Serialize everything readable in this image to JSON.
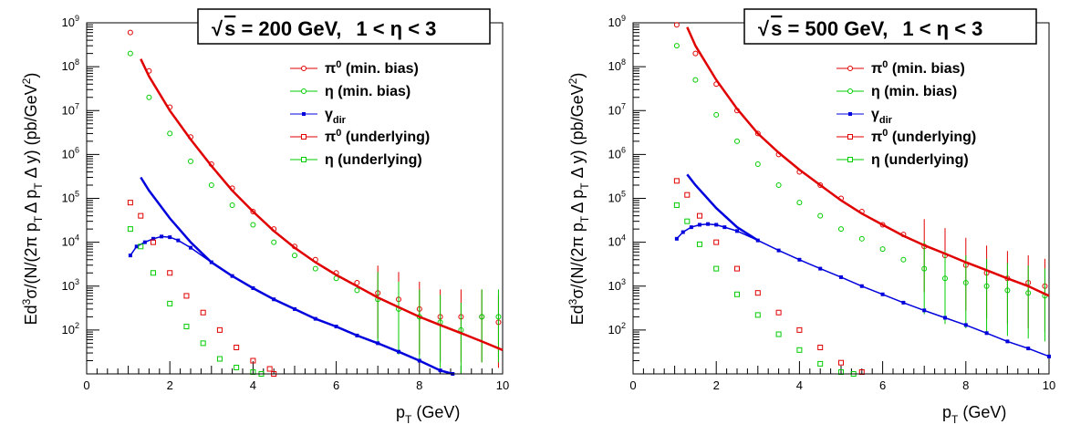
{
  "chart_data": [
    {
      "type": "scatter",
      "title_box": {
        "sqrt_symbol": "√",
        "s_label": "s",
        "energy_text": " = 200 GeV,",
        "eta_range_text": "1 < η < 3"
      },
      "xlabel": "p",
      "xlabel_sub": "T",
      "xlabel_unit": " (GeV)",
      "ylabel_parts": {
        "p1": "Ed",
        "sup3": "3",
        "p2": "σ/(N/(2π p",
        "subT1": "T",
        "p3": "Δ p",
        "subT2": "T",
        "p4": " Δ y) (pb/GeV",
        "sup2": "2",
        "p5": ")"
      },
      "xlim": [
        0,
        10
      ],
      "ylim": [
        10,
        1000000000
      ],
      "yscale": "log",
      "x_ticks": [
        0,
        2,
        4,
        6,
        8,
        10
      ],
      "y_tick_labels": [
        {
          "base": "10",
          "exp": "2",
          "value": 100
        },
        {
          "base": "10",
          "exp": "3",
          "value": 1000
        },
        {
          "base": "10",
          "exp": "4",
          "value": 10000
        },
        {
          "base": "10",
          "exp": "5",
          "value": 100000
        },
        {
          "base": "10",
          "exp": "6",
          "value": 1000000
        },
        {
          "base": "10",
          "exp": "7",
          "value": 10000000
        },
        {
          "base": "10",
          "exp": "8",
          "value": 100000000
        },
        {
          "base": "10",
          "exp": "9",
          "value": 1000000000
        }
      ],
      "legend_position": "top-right",
      "legend": [
        {
          "label": "π",
          "sup": "0",
          "sub": "",
          "suffix": " (min. bias)",
          "color": "#e00000",
          "marker": "circle"
        },
        {
          "label": "η",
          "sup": "",
          "sub": "",
          "suffix": " (min. bias)",
          "color": "#00cc00",
          "marker": "circle"
        },
        {
          "label": "γ",
          "sup": "",
          "sub": "dir",
          "suffix": "",
          "color": "#0000dd",
          "marker": "square-filled"
        },
        {
          "label": "π",
          "sup": "0",
          "sub": "",
          "suffix": " (underlying)",
          "color": "#e00000",
          "marker": "square"
        },
        {
          "label": "η",
          "sup": "",
          "sub": "",
          "suffix": " (underlying)",
          "color": "#00cc00",
          "marker": "square"
        }
      ],
      "series": [
        {
          "name": "π0 (min. bias)",
          "color": "#e00000",
          "marker": "circle",
          "x": [
            1.05,
            1.5,
            2.0,
            2.5,
            3.0,
            3.5,
            4.0,
            4.5,
            5.0,
            5.5,
            6.0,
            6.5,
            7.0,
            7.5,
            8.0,
            8.5,
            9.0,
            9.5,
            9.9
          ],
          "y": [
            600000000,
            80000000,
            12000000,
            2500000,
            600000,
            170000,
            50000,
            20000,
            8000,
            4000,
            2000,
            1200,
            700,
            500,
            300,
            200,
            200,
            200,
            150
          ]
        },
        {
          "name": "η (min. bias)",
          "color": "#00cc00",
          "marker": "circle",
          "x": [
            1.05,
            1.5,
            2.0,
            2.5,
            3.0,
            3.5,
            4.0,
            4.5,
            5.0,
            5.5,
            6.0,
            6.5,
            7.0,
            7.5,
            8.0,
            8.5,
            9.0,
            9.5,
            9.9
          ],
          "y": [
            200000000,
            20000000,
            3000000,
            700000,
            200000,
            70000,
            25000,
            10000,
            5000,
            2500,
            1500,
            800,
            500,
            300,
            200,
            150,
            100,
            200,
            200
          ]
        },
        {
          "name": "π0 (min. bias) fit",
          "color": "#e00000",
          "marker": "line",
          "x": [
            1.3,
            1.5,
            2.0,
            2.5,
            3.0,
            3.5,
            4.0,
            4.5,
            5.0,
            5.5,
            6.0,
            6.5,
            7.0,
            7.5,
            8.0,
            8.5,
            9.0,
            9.5,
            10.0
          ],
          "y": [
            150000000,
            60000000,
            10000000,
            2200000,
            550000,
            150000,
            50000,
            18000,
            7500,
            3500,
            1800,
            1000,
            550,
            330,
            200,
            130,
            85,
            55,
            35
          ]
        },
        {
          "name": "γdir",
          "color": "#0000dd",
          "marker": "line-points",
          "x": [
            1.05,
            1.2,
            1.4,
            1.6,
            1.8,
            2.0,
            2.2,
            2.5,
            3.0,
            3.5,
            4.0,
            4.5,
            5.0,
            5.5,
            6.0,
            6.5,
            7.0,
            7.5,
            8.0,
            8.5,
            8.8
          ],
          "y": [
            5000,
            8000,
            10000,
            12000,
            13500,
            13000,
            11000,
            7500,
            3500,
            1700,
            900,
            500,
            300,
            180,
            120,
            75,
            50,
            32,
            20,
            12,
            10
          ]
        },
        {
          "name": "γdir (fit)",
          "color": "#0000dd",
          "marker": "line",
          "x": [
            1.3,
            1.5,
            2.0,
            2.5,
            3.0,
            3.5,
            4.0,
            4.5,
            5.0,
            5.5,
            6.0,
            6.5,
            7.0,
            7.5,
            8.0,
            8.5,
            8.8
          ],
          "y": [
            300000,
            150000,
            35000,
            10000,
            3500,
            1700,
            900,
            500,
            300,
            180,
            120,
            75,
            50,
            32,
            20,
            12,
            10
          ]
        },
        {
          "name": "π0 (underlying)",
          "color": "#e00000",
          "marker": "square",
          "x": [
            1.05,
            1.3,
            1.6,
            2.0,
            2.4,
            2.8,
            3.2,
            3.6,
            4.0,
            4.4,
            4.5
          ],
          "y": [
            80000,
            40000,
            10000,
            2000,
            600,
            250,
            100,
            40,
            20,
            13,
            10
          ]
        },
        {
          "name": "η (underlying)",
          "color": "#00cc00",
          "marker": "square",
          "x": [
            1.05,
            1.3,
            1.6,
            2.0,
            2.4,
            2.8,
            3.2,
            3.6,
            4.0,
            4.2
          ],
          "y": [
            20000,
            8000,
            2000,
            400,
            120,
            50,
            22,
            14,
            11,
            10
          ]
        }
      ]
    },
    {
      "type": "scatter",
      "title_box": {
        "sqrt_symbol": "√",
        "s_label": "s",
        "energy_text": " = 500 GeV,",
        "eta_range_text": "1 < η < 3"
      },
      "xlabel": "p",
      "xlabel_sub": "T",
      "xlabel_unit": " (GeV)",
      "ylabel_parts": {
        "p1": "Ed",
        "sup3": "3",
        "p2": "σ/(N/(2π p",
        "subT1": "T",
        "p3": "Δ p",
        "subT2": "T",
        "p4": " Δ y) (pb/GeV",
        "sup2": "2",
        "p5": ")"
      },
      "xlim": [
        0,
        10
      ],
      "ylim": [
        10,
        1000000000
      ],
      "yscale": "log",
      "x_ticks": [
        0,
        2,
        4,
        6,
        8,
        10
      ],
      "y_tick_labels": [
        {
          "base": "10",
          "exp": "2",
          "value": 100
        },
        {
          "base": "10",
          "exp": "3",
          "value": 1000
        },
        {
          "base": "10",
          "exp": "4",
          "value": 10000
        },
        {
          "base": "10",
          "exp": "5",
          "value": 100000
        },
        {
          "base": "10",
          "exp": "6",
          "value": 1000000
        },
        {
          "base": "10",
          "exp": "7",
          "value": 10000000
        },
        {
          "base": "10",
          "exp": "8",
          "value": 100000000
        },
        {
          "base": "10",
          "exp": "9",
          "value": 1000000000
        }
      ],
      "legend_position": "top-right",
      "legend": [
        {
          "label": "π",
          "sup": "0",
          "sub": "",
          "suffix": " (min. bias)",
          "color": "#e00000",
          "marker": "circle"
        },
        {
          "label": "η",
          "sup": "",
          "sub": "",
          "suffix": " (min. bias)",
          "color": "#00cc00",
          "marker": "circle"
        },
        {
          "label": "γ",
          "sup": "",
          "sub": "dir",
          "suffix": "",
          "color": "#0000dd",
          "marker": "square-filled"
        },
        {
          "label": "π",
          "sup": "0",
          "sub": "",
          "suffix": " (underlying)",
          "color": "#e00000",
          "marker": "square"
        },
        {
          "label": "η",
          "sup": "",
          "sub": "",
          "suffix": " (underlying)",
          "color": "#00cc00",
          "marker": "square"
        }
      ],
      "series": [
        {
          "name": "π0 (min. bias)",
          "color": "#e00000",
          "marker": "circle",
          "x": [
            1.05,
            1.5,
            2.0,
            2.5,
            3.0,
            3.5,
            4.0,
            4.5,
            5.0,
            5.5,
            6.0,
            6.5,
            7.0,
            7.5,
            8.0,
            8.5,
            9.0,
            9.5,
            9.9
          ],
          "y": [
            900000000,
            200000000,
            40000000,
            10000000,
            3000000,
            1000000,
            400000,
            200000,
            100000,
            50000,
            25000,
            15000,
            8000,
            5000,
            3000,
            2000,
            1500,
            1200,
            1000
          ]
        },
        {
          "name": "η (min. bias)",
          "color": "#00cc00",
          "marker": "circle",
          "x": [
            1.05,
            1.5,
            2.0,
            2.5,
            3.0,
            3.5,
            4.0,
            4.5,
            5.0,
            5.5,
            6.0,
            6.5,
            7.0,
            7.5,
            8.0,
            8.5,
            9.0,
            9.5,
            9.9
          ],
          "y": [
            300000000,
            50000000,
            8000000,
            2000000,
            600000,
            200000,
            80000,
            40000,
            20000,
            12000,
            7000,
            4000,
            2500,
            1500,
            1200,
            1000,
            800,
            700,
            600
          ]
        },
        {
          "name": "π0 (min. bias) fit",
          "color": "#e00000",
          "marker": "line",
          "x": [
            1.3,
            1.5,
            2.0,
            2.5,
            3.0,
            3.5,
            4.0,
            4.5,
            5.0,
            5.5,
            6.0,
            6.5,
            7.0,
            7.5,
            8.0,
            8.5,
            9.0,
            9.5,
            10.0
          ],
          "y": [
            800000000,
            300000000,
            50000000,
            11000000,
            3000000,
            1100000,
            450000,
            200000,
            90000,
            45000,
            25000,
            14000,
            8500,
            5500,
            3500,
            2300,
            1500,
            1000,
            600
          ]
        },
        {
          "name": "γdir",
          "color": "#0000dd",
          "marker": "line-points",
          "x": [
            1.05,
            1.2,
            1.4,
            1.6,
            1.8,
            2.0,
            2.2,
            2.5,
            3.0,
            3.5,
            4.0,
            4.5,
            5.0,
            5.5,
            6.0,
            6.5,
            7.0,
            7.5,
            8.0,
            8.5,
            9.0,
            9.5,
            10.0
          ],
          "y": [
            12000,
            17000,
            22000,
            25000,
            26000,
            25000,
            22000,
            18000,
            11000,
            6500,
            4000,
            2500,
            1600,
            1000,
            650,
            420,
            280,
            190,
            130,
            85,
            55,
            38,
            25
          ]
        },
        {
          "name": "γdir (fit)",
          "color": "#0000dd",
          "marker": "line",
          "x": [
            1.3,
            1.5,
            2.0,
            2.5,
            3.0
          ],
          "y": [
            350000,
            200000,
            60000,
            22000,
            11000
          ]
        },
        {
          "name": "π0 (underlying)",
          "color": "#e00000",
          "marker": "square",
          "x": [
            1.05,
            1.3,
            1.6,
            2.0,
            2.5,
            3.0,
            3.5,
            4.0,
            4.5,
            5.0,
            5.5
          ],
          "y": [
            250000,
            120000,
            40000,
            10000,
            2500,
            700,
            250,
            100,
            40,
            18,
            11
          ]
        },
        {
          "name": "η (underlying)",
          "color": "#00cc00",
          "marker": "square",
          "x": [
            1.05,
            1.3,
            1.6,
            2.0,
            2.5,
            3.0,
            3.5,
            4.0,
            4.5,
            5.0,
            5.3
          ],
          "y": [
            70000,
            30000,
            9000,
            2500,
            650,
            220,
            80,
            35,
            17,
            11,
            10
          ]
        }
      ]
    }
  ]
}
